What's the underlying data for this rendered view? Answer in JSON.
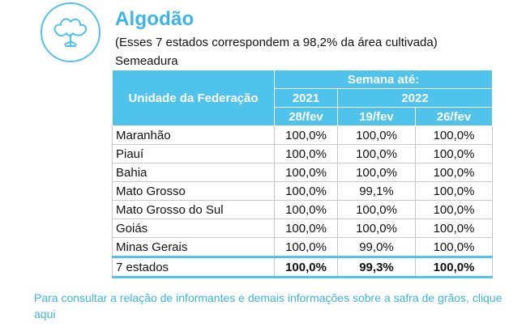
{
  "header": {
    "title": "Algodão",
    "subtitle": "(Esses 7 estados correspondem a 98,2% da área cultivada)",
    "section": "Semeadura"
  },
  "icon": "cotton-plant-icon",
  "colors": {
    "accent": "#3cb4e5",
    "header_bg": "#4fc3ec"
  },
  "table": {
    "uf_header": "Unidade da Federação",
    "week_header": "Semana até:",
    "year_a": "2021",
    "year_b": "2022",
    "dates": [
      "28/fev",
      "19/fev",
      "26/fev"
    ],
    "rows": [
      {
        "uf": "Maranhão",
        "values": [
          "100,0%",
          "100,0%",
          "100,0%"
        ]
      },
      {
        "uf": "Piauí",
        "values": [
          "100,0%",
          "100,0%",
          "100,0%"
        ]
      },
      {
        "uf": "Bahia",
        "values": [
          "100,0%",
          "100,0%",
          "100,0%"
        ]
      },
      {
        "uf": "Mato Grosso",
        "values": [
          "100,0%",
          "99,1%",
          "100,0%"
        ]
      },
      {
        "uf": "Mato Grosso do Sul",
        "values": [
          "100,0%",
          "100,0%",
          "100,0%"
        ]
      },
      {
        "uf": "Goiás",
        "values": [
          "100,0%",
          "100,0%",
          "100,0%"
        ]
      },
      {
        "uf": "Minas Gerais",
        "values": [
          "100,0%",
          "99,0%",
          "100,0%"
        ]
      }
    ],
    "total": {
      "uf": "7 estados",
      "values": [
        "100,0%",
        "99,3%",
        "100,0%"
      ]
    }
  },
  "footer": {
    "text": "Para consultar a relação de informantes e demais informações sobre a safra de grãos, clique aqui"
  }
}
